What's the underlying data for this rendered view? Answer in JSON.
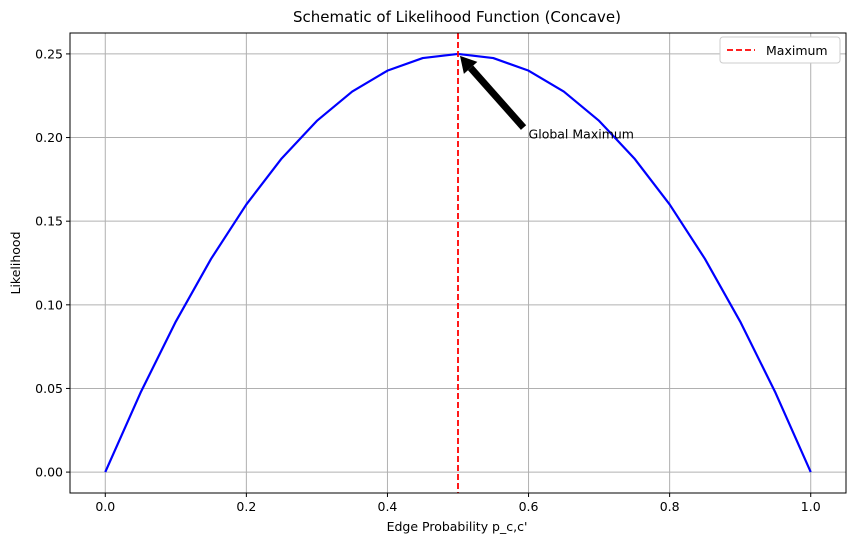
{
  "chart_data": {
    "type": "line",
    "title": "Schematic of Likelihood Function (Concave)",
    "xlabel": "Edge Probability p_c,c'",
    "ylabel": "Likelihood",
    "xlim": [
      -0.05,
      1.05
    ],
    "ylim": [
      -0.0125,
      0.2625
    ],
    "xticks": [
      0.0,
      0.2,
      0.4,
      0.6,
      0.8,
      1.0
    ],
    "xtick_labels": [
      "0.0",
      "0.2",
      "0.4",
      "0.6",
      "0.8",
      "1.0"
    ],
    "yticks": [
      0.0,
      0.05,
      0.1,
      0.15,
      0.2,
      0.25
    ],
    "ytick_labels": [
      "0.00",
      "0.05",
      "0.10",
      "0.15",
      "0.20",
      "0.25"
    ],
    "grid": true,
    "series": [
      {
        "color": "#0000ff",
        "x": [
          0.0,
          0.05,
          0.1,
          0.15,
          0.2,
          0.25,
          0.3,
          0.35,
          0.4,
          0.45,
          0.5,
          0.55,
          0.6,
          0.65,
          0.7,
          0.75,
          0.8,
          0.85,
          0.9,
          0.95,
          1.0
        ],
        "y": [
          0.0,
          0.0475,
          0.09,
          0.1275,
          0.16,
          0.1875,
          0.21,
          0.2275,
          0.24,
          0.2475,
          0.25,
          0.2475,
          0.24,
          0.2275,
          0.21,
          0.1875,
          0.16,
          0.1275,
          0.09,
          0.0475,
          0.0
        ]
      }
    ],
    "vline": {
      "x": 0.5,
      "color": "#ff0000",
      "style": "dashed",
      "label": "Maximum"
    },
    "annotation": {
      "text": "Global Maximum",
      "xy": [
        0.5,
        0.25
      ],
      "xytext": [
        0.6,
        0.2
      ]
    },
    "legend": {
      "position": "top-right",
      "entries": [
        "Maximum"
      ]
    }
  }
}
